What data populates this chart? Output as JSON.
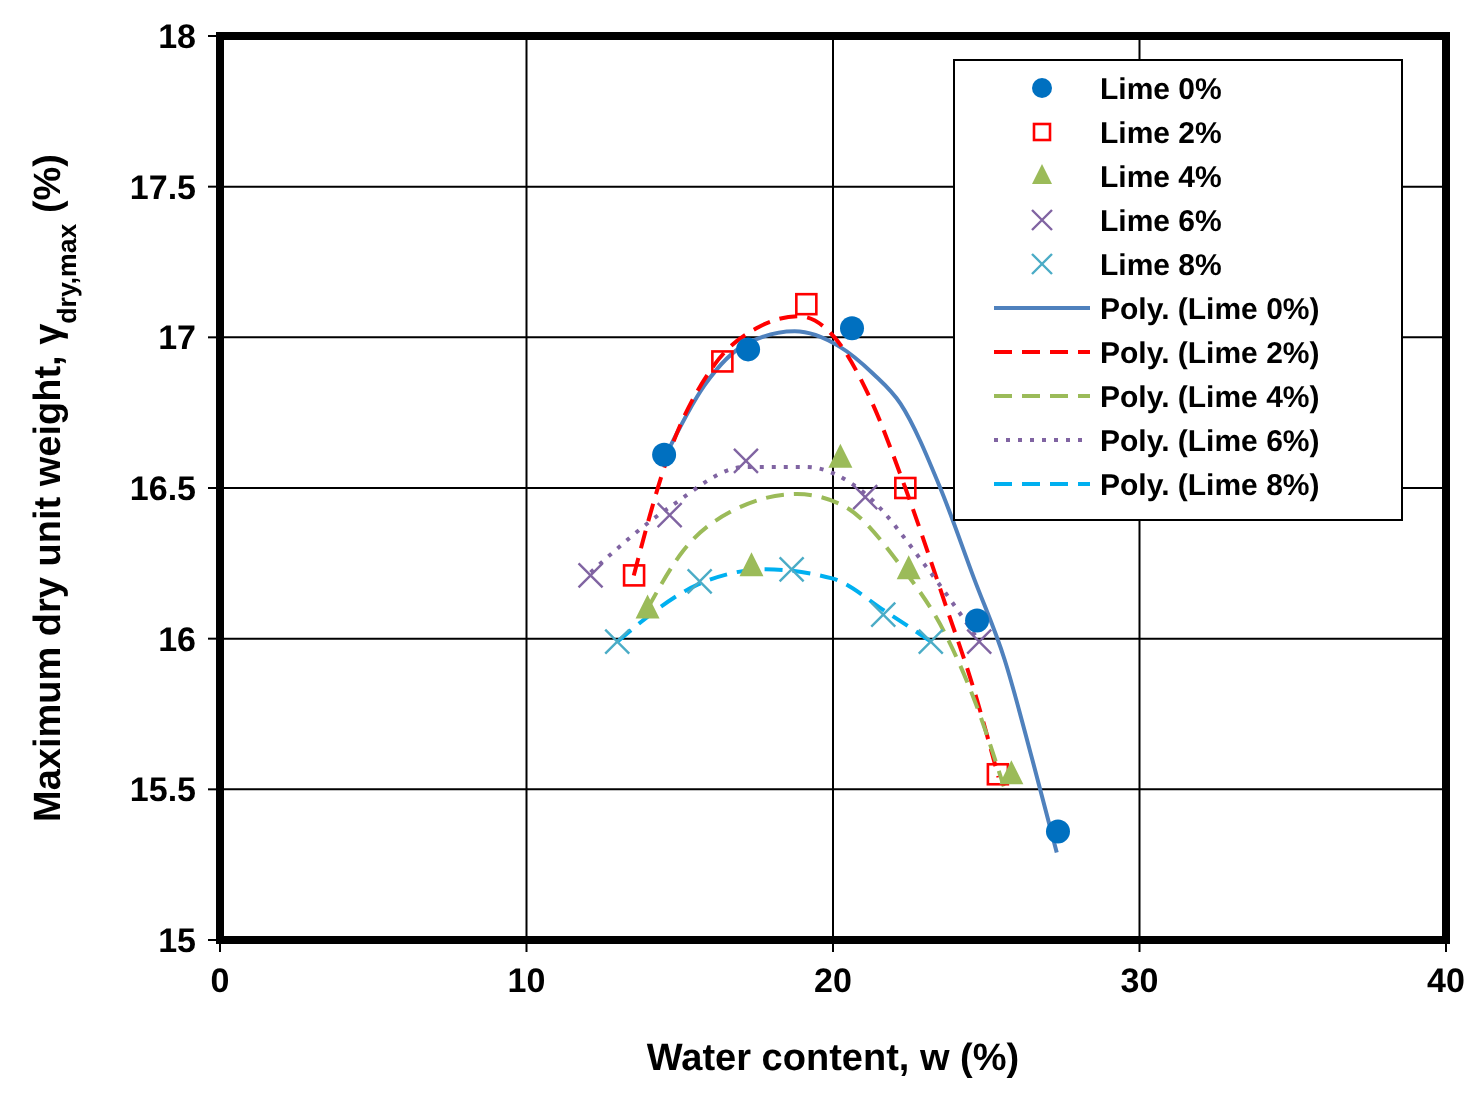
{
  "chart_data": {
    "type": "scatter",
    "xlabel": "Water content, w (%)",
    "ylabel": "Maximum dry unit weight, γ$_{dry,max}$ (%)",
    "xlim": [
      0,
      40
    ],
    "xticks": [
      0,
      10,
      20,
      30,
      40
    ],
    "ylim": [
      15,
      18
    ],
    "yticks": [
      15,
      15.5,
      16,
      16.5,
      17,
      17.5,
      18
    ],
    "grid": true,
    "legend": "top right",
    "series": [
      {
        "name": "Lime 0%",
        "marker": "circle",
        "color": "#0070c0",
        "x": [
          14.49,
          17.23,
          20.62,
          24.7,
          27.34
        ],
        "values": [
          16.61,
          16.96,
          17.03,
          16.06,
          15.36
        ]
      },
      {
        "name": "Lime 2%",
        "marker": "square",
        "color": "#ff0000",
        "x": [
          13.51,
          16.39,
          19.13,
          22.36,
          25.38
        ],
        "values": [
          16.21,
          16.92,
          17.11,
          16.5,
          15.55
        ]
      },
      {
        "name": "Lime 4%",
        "marker": "triangle",
        "color": "#9bbb59",
        "x": [
          13.95,
          17.34,
          20.24,
          22.47,
          25.82
        ],
        "values": [
          16.1,
          16.24,
          16.6,
          16.23,
          15.55
        ]
      },
      {
        "name": "Lime 6%",
        "marker": "cross",
        "color": "#8064a2",
        "x": [
          12.09,
          14.67,
          17.16,
          21.05,
          24.77
        ],
        "values": [
          16.21,
          16.41,
          16.59,
          16.47,
          15.99
        ]
      },
      {
        "name": "Lime 8%",
        "marker": "cross",
        "color": "#4bacc6",
        "x": [
          12.96,
          15.65,
          18.65,
          21.64,
          23.19
        ],
        "values": [
          15.99,
          16.19,
          16.23,
          16.08,
          15.99
        ]
      },
      {
        "name": "Poly. (Lime 0%)",
        "type": "line",
        "line_style": "solid",
        "color": "#4f81bd",
        "x": [
          14.5,
          15.8,
          17.2,
          18.75,
          20.2,
          21.3,
          22.2,
          23.5,
          24.6,
          25.6,
          26.5,
          27.3
        ],
        "values": [
          16.6,
          16.84,
          16.98,
          17.02,
          16.97,
          16.88,
          16.78,
          16.5,
          16.2,
          15.93,
          15.6,
          15.29
        ]
      },
      {
        "name": "Poly. (Lime 2%)",
        "type": "line",
        "line_style": "dashed",
        "color": "#ff0000",
        "x": [
          13.5,
          14.6,
          16.14,
          17.5,
          18.9,
          20.05,
          21.2,
          22.36,
          23.68,
          24.6,
          25.4
        ],
        "values": [
          16.21,
          16.6,
          16.91,
          17.03,
          17.07,
          17.0,
          16.8,
          16.5,
          16.11,
          15.83,
          15.54
        ]
      },
      {
        "name": "Poly. (Lime 4%)",
        "type": "line",
        "line_style": "dashed",
        "color": "#9bbb59",
        "x": [
          13.95,
          15.1,
          16.64,
          18.83,
          20.36,
          22.22,
          23.64,
          24.6,
          25.57
        ],
        "values": [
          16.1,
          16.29,
          16.42,
          16.48,
          16.44,
          16.24,
          16.02,
          15.8,
          15.51
        ]
      },
      {
        "name": "Poly. (Lime 6%)",
        "type": "line",
        "line_style": "dotted",
        "color": "#8064a2",
        "x": [
          12.09,
          14.72,
          17.13,
          19.1,
          21.06,
          23.03,
          24.78
        ],
        "values": [
          16.22,
          16.44,
          16.57,
          16.57,
          16.48,
          16.24,
          15.99
        ]
      },
      {
        "name": "Poly. (Lime 8%)",
        "type": "line",
        "line_style": "dashed",
        "color": "#00b0f0",
        "x": [
          12.96,
          15.6,
          17.8,
          19.97,
          21.72,
          23.2
        ],
        "values": [
          15.99,
          16.18,
          16.23,
          16.2,
          16.09,
          15.99
        ]
      }
    ]
  }
}
